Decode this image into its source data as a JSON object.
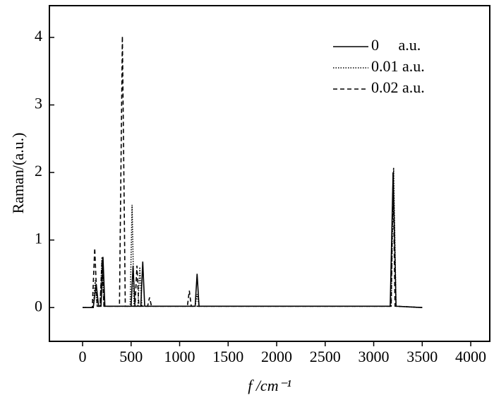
{
  "chart_data": {
    "type": "line",
    "x_label": "f /cm⁻¹",
    "y_label": "Raman/(a.u.)",
    "xlim": [
      -342,
      4196
    ],
    "ylim": [
      -0.5,
      4.47
    ],
    "xticks": [
      0,
      500,
      1000,
      1500,
      2000,
      2500,
      3000,
      3500,
      4000
    ],
    "yticks": [
      0,
      1,
      2,
      3,
      4
    ],
    "grid": false,
    "legend": "upper right",
    "series": [
      {
        "name": "0     a.u.",
        "color": "#000000",
        "dash": "solid",
        "x": [
          0,
          110,
          140,
          165,
          190,
          210,
          230,
          500,
          520,
          540,
          600,
          620,
          640,
          1160,
          1180,
          1200,
          3170,
          3200,
          3230,
          3500
        ],
        "values": [
          0,
          0,
          0.35,
          0.02,
          0.02,
          0.75,
          0.02,
          0.02,
          0.62,
          0.02,
          0.02,
          0.68,
          0.02,
          0.02,
          0.5,
          0.02,
          0.02,
          2.0,
          0.02,
          0
        ]
      },
      {
        "name": "0.01 a.u.",
        "color": "#000000",
        "dash": "dotted",
        "x": [
          0,
          110,
          130,
          150,
          180,
          200,
          220,
          490,
          510,
          530,
          570,
          590,
          610,
          1160,
          1180,
          1200,
          3180,
          3205,
          3230,
          3500
        ],
        "values": [
          0,
          0,
          0.4,
          0.02,
          0.02,
          0.75,
          0.02,
          0.02,
          1.52,
          0.02,
          0.02,
          0.6,
          0.02,
          0.02,
          0.2,
          0.02,
          0.02,
          2.07,
          0.02,
          0
        ]
      },
      {
        "name": "0.02 a.u.",
        "color": "#000000",
        "dash": "dashed",
        "x": [
          0,
          100,
          125,
          150,
          180,
          200,
          220,
          380,
          410,
          440,
          540,
          560,
          580,
          670,
          690,
          710,
          1080,
          1100,
          1120,
          3180,
          3200,
          3220,
          3500
        ],
        "values": [
          0,
          0,
          0.88,
          0.02,
          0.02,
          0.7,
          0.02,
          0.02,
          4.02,
          0.02,
          0.02,
          0.62,
          0.02,
          0.02,
          0.15,
          0.02,
          0.02,
          0.25,
          0.02,
          0.02,
          2.0,
          0.02,
          0
        ]
      }
    ]
  }
}
